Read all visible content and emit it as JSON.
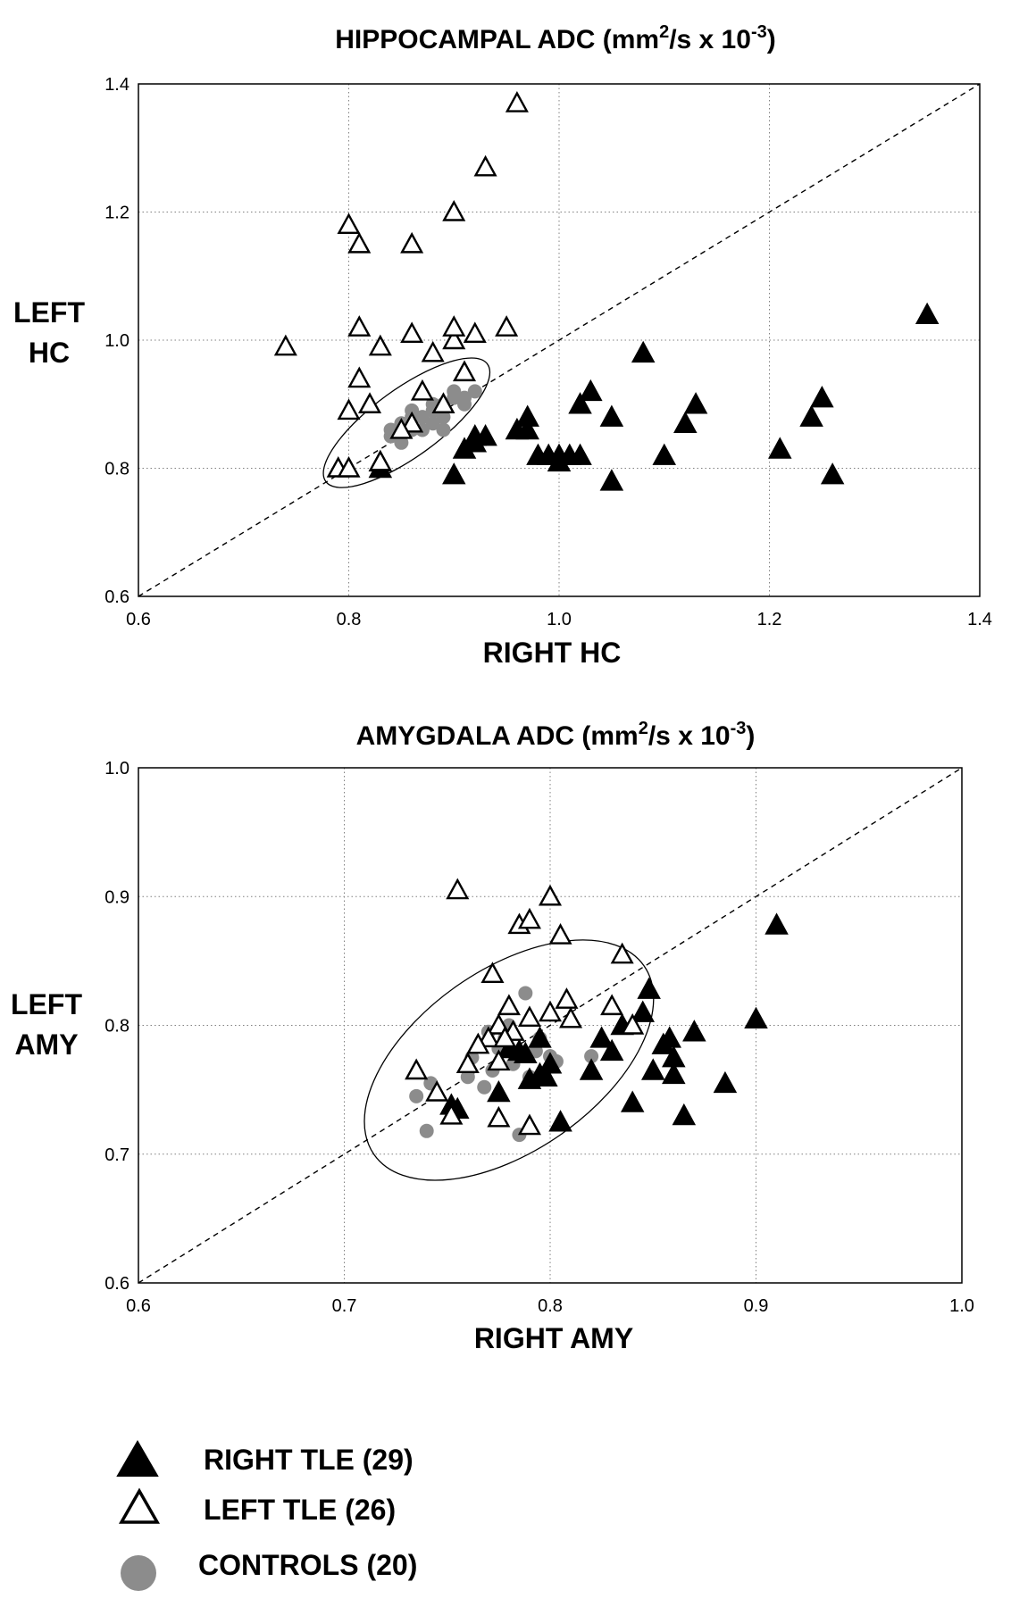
{
  "colors": {
    "right_tle": "#000000",
    "left_tle": "#ffffff",
    "controls": "#8c8c8c",
    "grid": "#808080"
  },
  "chart_data": [
    {
      "type": "scatter",
      "title": "HIPPOCAMPAL ADC (mm2/s x 10-3)",
      "title_parts": {
        "a": "HIPPOCAMPAL ADC (mm",
        "sup1": "2",
        "b": "/s x 10",
        "sup2": "-3",
        "c": ")"
      },
      "xlabel": "RIGHT HC",
      "ylabel": [
        "LEFT",
        "HC"
      ],
      "xlim": [
        0.6,
        1.4
      ],
      "ylim": [
        0.6,
        1.4
      ],
      "xticks": [
        "0.6",
        "0.8",
        "1.0",
        "1.2",
        "1.4"
      ],
      "yticks": [
        "0.6",
        "0.8",
        "1.0",
        "1.2",
        "1.4"
      ],
      "grid": true,
      "identity_line": true,
      "ellipse": {
        "cx": 0.855,
        "cy": 0.871,
        "rx": 0.095,
        "ry": 0.024,
        "angle_deg": 36
      },
      "series": [
        {
          "name": "RIGHT TLE (29)",
          "marker": "filled-triangle",
          "points": [
            [
              0.83,
              0.8
            ],
            [
              0.9,
              0.79
            ],
            [
              0.91,
              0.83
            ],
            [
              0.92,
              0.84
            ],
            [
              0.93,
              0.85
            ],
            [
              0.96,
              0.86
            ],
            [
              0.97,
              0.88
            ],
            [
              0.98,
              0.82
            ],
            [
              0.99,
              0.82
            ],
            [
              1.0,
              0.82
            ],
            [
              1.01,
              0.82
            ],
            [
              1.02,
              0.82
            ],
            [
              1.02,
              0.9
            ],
            [
              1.03,
              0.92
            ],
            [
              1.05,
              0.88
            ],
            [
              1.05,
              0.78
            ],
            [
              1.08,
              0.98
            ],
            [
              1.1,
              0.82
            ],
            [
              1.12,
              0.87
            ],
            [
              1.13,
              0.9
            ],
            [
              1.21,
              0.83
            ],
            [
              1.24,
              0.88
            ],
            [
              1.25,
              0.91
            ],
            [
              1.26,
              0.79
            ],
            [
              1.35,
              1.04
            ],
            [
              0.97,
              0.86
            ],
            [
              0.83,
              0.81
            ],
            [
              0.92,
              0.85
            ],
            [
              1.0,
              0.81
            ]
          ]
        },
        {
          "name": "LEFT TLE (26)",
          "marker": "open-triangle",
          "points": [
            [
              0.74,
              0.99
            ],
            [
              0.8,
              1.18
            ],
            [
              0.81,
              1.15
            ],
            [
              0.86,
              1.15
            ],
            [
              0.9,
              1.2
            ],
            [
              0.93,
              1.27
            ],
            [
              0.96,
              1.37
            ],
            [
              0.81,
              1.02
            ],
            [
              0.83,
              0.99
            ],
            [
              0.86,
              1.01
            ],
            [
              0.9,
              1.0
            ],
            [
              0.9,
              1.02
            ],
            [
              0.92,
              1.01
            ],
            [
              0.95,
              1.02
            ],
            [
              0.88,
              0.98
            ],
            [
              0.91,
              0.95
            ],
            [
              0.81,
              0.94
            ],
            [
              0.8,
              0.89
            ],
            [
              0.82,
              0.9
            ],
            [
              0.87,
              0.92
            ],
            [
              0.89,
              0.9
            ],
            [
              0.86,
              0.87
            ],
            [
              0.85,
              0.86
            ],
            [
              0.79,
              0.8
            ],
            [
              0.8,
              0.8
            ],
            [
              0.83,
              0.81
            ]
          ]
        },
        {
          "name": "CONTROLS (20)",
          "marker": "filled-circle",
          "points": [
            [
              0.84,
              0.85
            ],
            [
              0.85,
              0.84
            ],
            [
              0.86,
              0.86
            ],
            [
              0.86,
              0.89
            ],
            [
              0.87,
              0.88
            ],
            [
              0.88,
              0.9
            ],
            [
              0.88,
              0.87
            ],
            [
              0.89,
              0.86
            ],
            [
              0.89,
              0.88
            ],
            [
              0.9,
              0.91
            ],
            [
              0.9,
              0.92
            ],
            [
              0.91,
              0.9
            ],
            [
              0.92,
              0.92
            ],
            [
              0.85,
              0.87
            ],
            [
              0.87,
              0.86
            ],
            [
              0.88,
              0.89
            ],
            [
              0.86,
              0.88
            ],
            [
              0.84,
              0.86
            ],
            [
              0.89,
              0.9
            ],
            [
              0.91,
              0.91
            ]
          ]
        }
      ]
    },
    {
      "type": "scatter",
      "title": "AMYGDALA ADC (mm2/s x 10-3)",
      "title_parts": {
        "a": "AMYGDALA ADC (mm",
        "sup1": "2",
        "b": "/s x 10",
        "sup2": "-3",
        "c": ")"
      },
      "xlabel": "RIGHT AMY",
      "ylabel": [
        "LEFT",
        "AMY"
      ],
      "xlim": [
        0.6,
        1.0
      ],
      "ylim": [
        0.6,
        1.0
      ],
      "xticks": [
        "0.6",
        "0.7",
        "0.8",
        "0.9",
        "1.0"
      ],
      "yticks": [
        "0.6",
        "0.7",
        "0.8",
        "0.9",
        "1.0"
      ],
      "grid": true,
      "identity_line": true,
      "ellipse": {
        "cx": 0.78,
        "cy": 0.773,
        "rx": 0.08,
        "ry": 0.032,
        "angle_deg": 35
      },
      "series": [
        {
          "name": "RIGHT TLE (29)",
          "marker": "filled-triangle",
          "points": [
            [
              0.755,
              0.735
            ],
            [
              0.775,
              0.748
            ],
            [
              0.78,
              0.782
            ],
            [
              0.79,
              0.758
            ],
            [
              0.795,
              0.762
            ],
            [
              0.8,
              0.77
            ],
            [
              0.795,
              0.79
            ],
            [
              0.805,
              0.725
            ],
            [
              0.82,
              0.765
            ],
            [
              0.825,
              0.79
            ],
            [
              0.83,
              0.78
            ],
            [
              0.835,
              0.8
            ],
            [
              0.84,
              0.74
            ],
            [
              0.845,
              0.81
            ],
            [
              0.848,
              0.828
            ],
            [
              0.85,
              0.765
            ],
            [
              0.855,
              0.785
            ],
            [
              0.858,
              0.79
            ],
            [
              0.86,
              0.775
            ],
            [
              0.86,
              0.762
            ],
            [
              0.865,
              0.73
            ],
            [
              0.87,
              0.795
            ],
            [
              0.885,
              0.755
            ],
            [
              0.9,
              0.805
            ],
            [
              0.91,
              0.878
            ],
            [
              0.785,
              0.78
            ],
            [
              0.798,
              0.76
            ],
            [
              0.752,
              0.738
            ],
            [
              0.788,
              0.778
            ]
          ]
        },
        {
          "name": "LEFT TLE (26)",
          "marker": "open-triangle",
          "points": [
            [
              0.755,
              0.905
            ],
            [
              0.785,
              0.878
            ],
            [
              0.79,
              0.882
            ],
            [
              0.8,
              0.9
            ],
            [
              0.805,
              0.87
            ],
            [
              0.835,
              0.855
            ],
            [
              0.772,
              0.84
            ],
            [
              0.808,
              0.82
            ],
            [
              0.83,
              0.815
            ],
            [
              0.84,
              0.8
            ],
            [
              0.81,
              0.805
            ],
            [
              0.8,
              0.81
            ],
            [
              0.79,
              0.806
            ],
            [
              0.78,
              0.815
            ],
            [
              0.775,
              0.8
            ],
            [
              0.77,
              0.79
            ],
            [
              0.76,
              0.77
            ],
            [
              0.775,
              0.772
            ],
            [
              0.735,
              0.765
            ],
            [
              0.745,
              0.748
            ],
            [
              0.752,
              0.73
            ],
            [
              0.775,
              0.728
            ],
            [
              0.79,
              0.722
            ],
            [
              0.782,
              0.795
            ],
            [
              0.778,
              0.79
            ],
            [
              0.765,
              0.785
            ]
          ]
        },
        {
          "name": "CONTROLS (20)",
          "marker": "filled-circle",
          "points": [
            [
              0.735,
              0.745
            ],
            [
              0.74,
              0.718
            ],
            [
              0.742,
              0.755
            ],
            [
              0.76,
              0.76
            ],
            [
              0.762,
              0.775
            ],
            [
              0.768,
              0.752
            ],
            [
              0.77,
              0.795
            ],
            [
              0.775,
              0.782
            ],
            [
              0.778,
              0.79
            ],
            [
              0.782,
              0.77
            ],
            [
              0.788,
              0.825
            ],
            [
              0.79,
              0.76
            ],
            [
              0.793,
              0.78
            ],
            [
              0.795,
              0.79
            ],
            [
              0.8,
              0.776
            ],
            [
              0.803,
              0.772
            ],
            [
              0.785,
              0.715
            ],
            [
              0.82,
              0.776
            ],
            [
              0.772,
              0.765
            ],
            [
              0.78,
              0.8
            ]
          ]
        }
      ]
    }
  ],
  "legend": {
    "placement": "bottom-left",
    "items": [
      {
        "marker": "filled-triangle",
        "label": "RIGHT TLE (29)"
      },
      {
        "marker": "open-triangle",
        "label": "LEFT TLE (26)"
      },
      {
        "marker": "filled-circle",
        "label": "CONTROLS (20)"
      }
    ]
  }
}
